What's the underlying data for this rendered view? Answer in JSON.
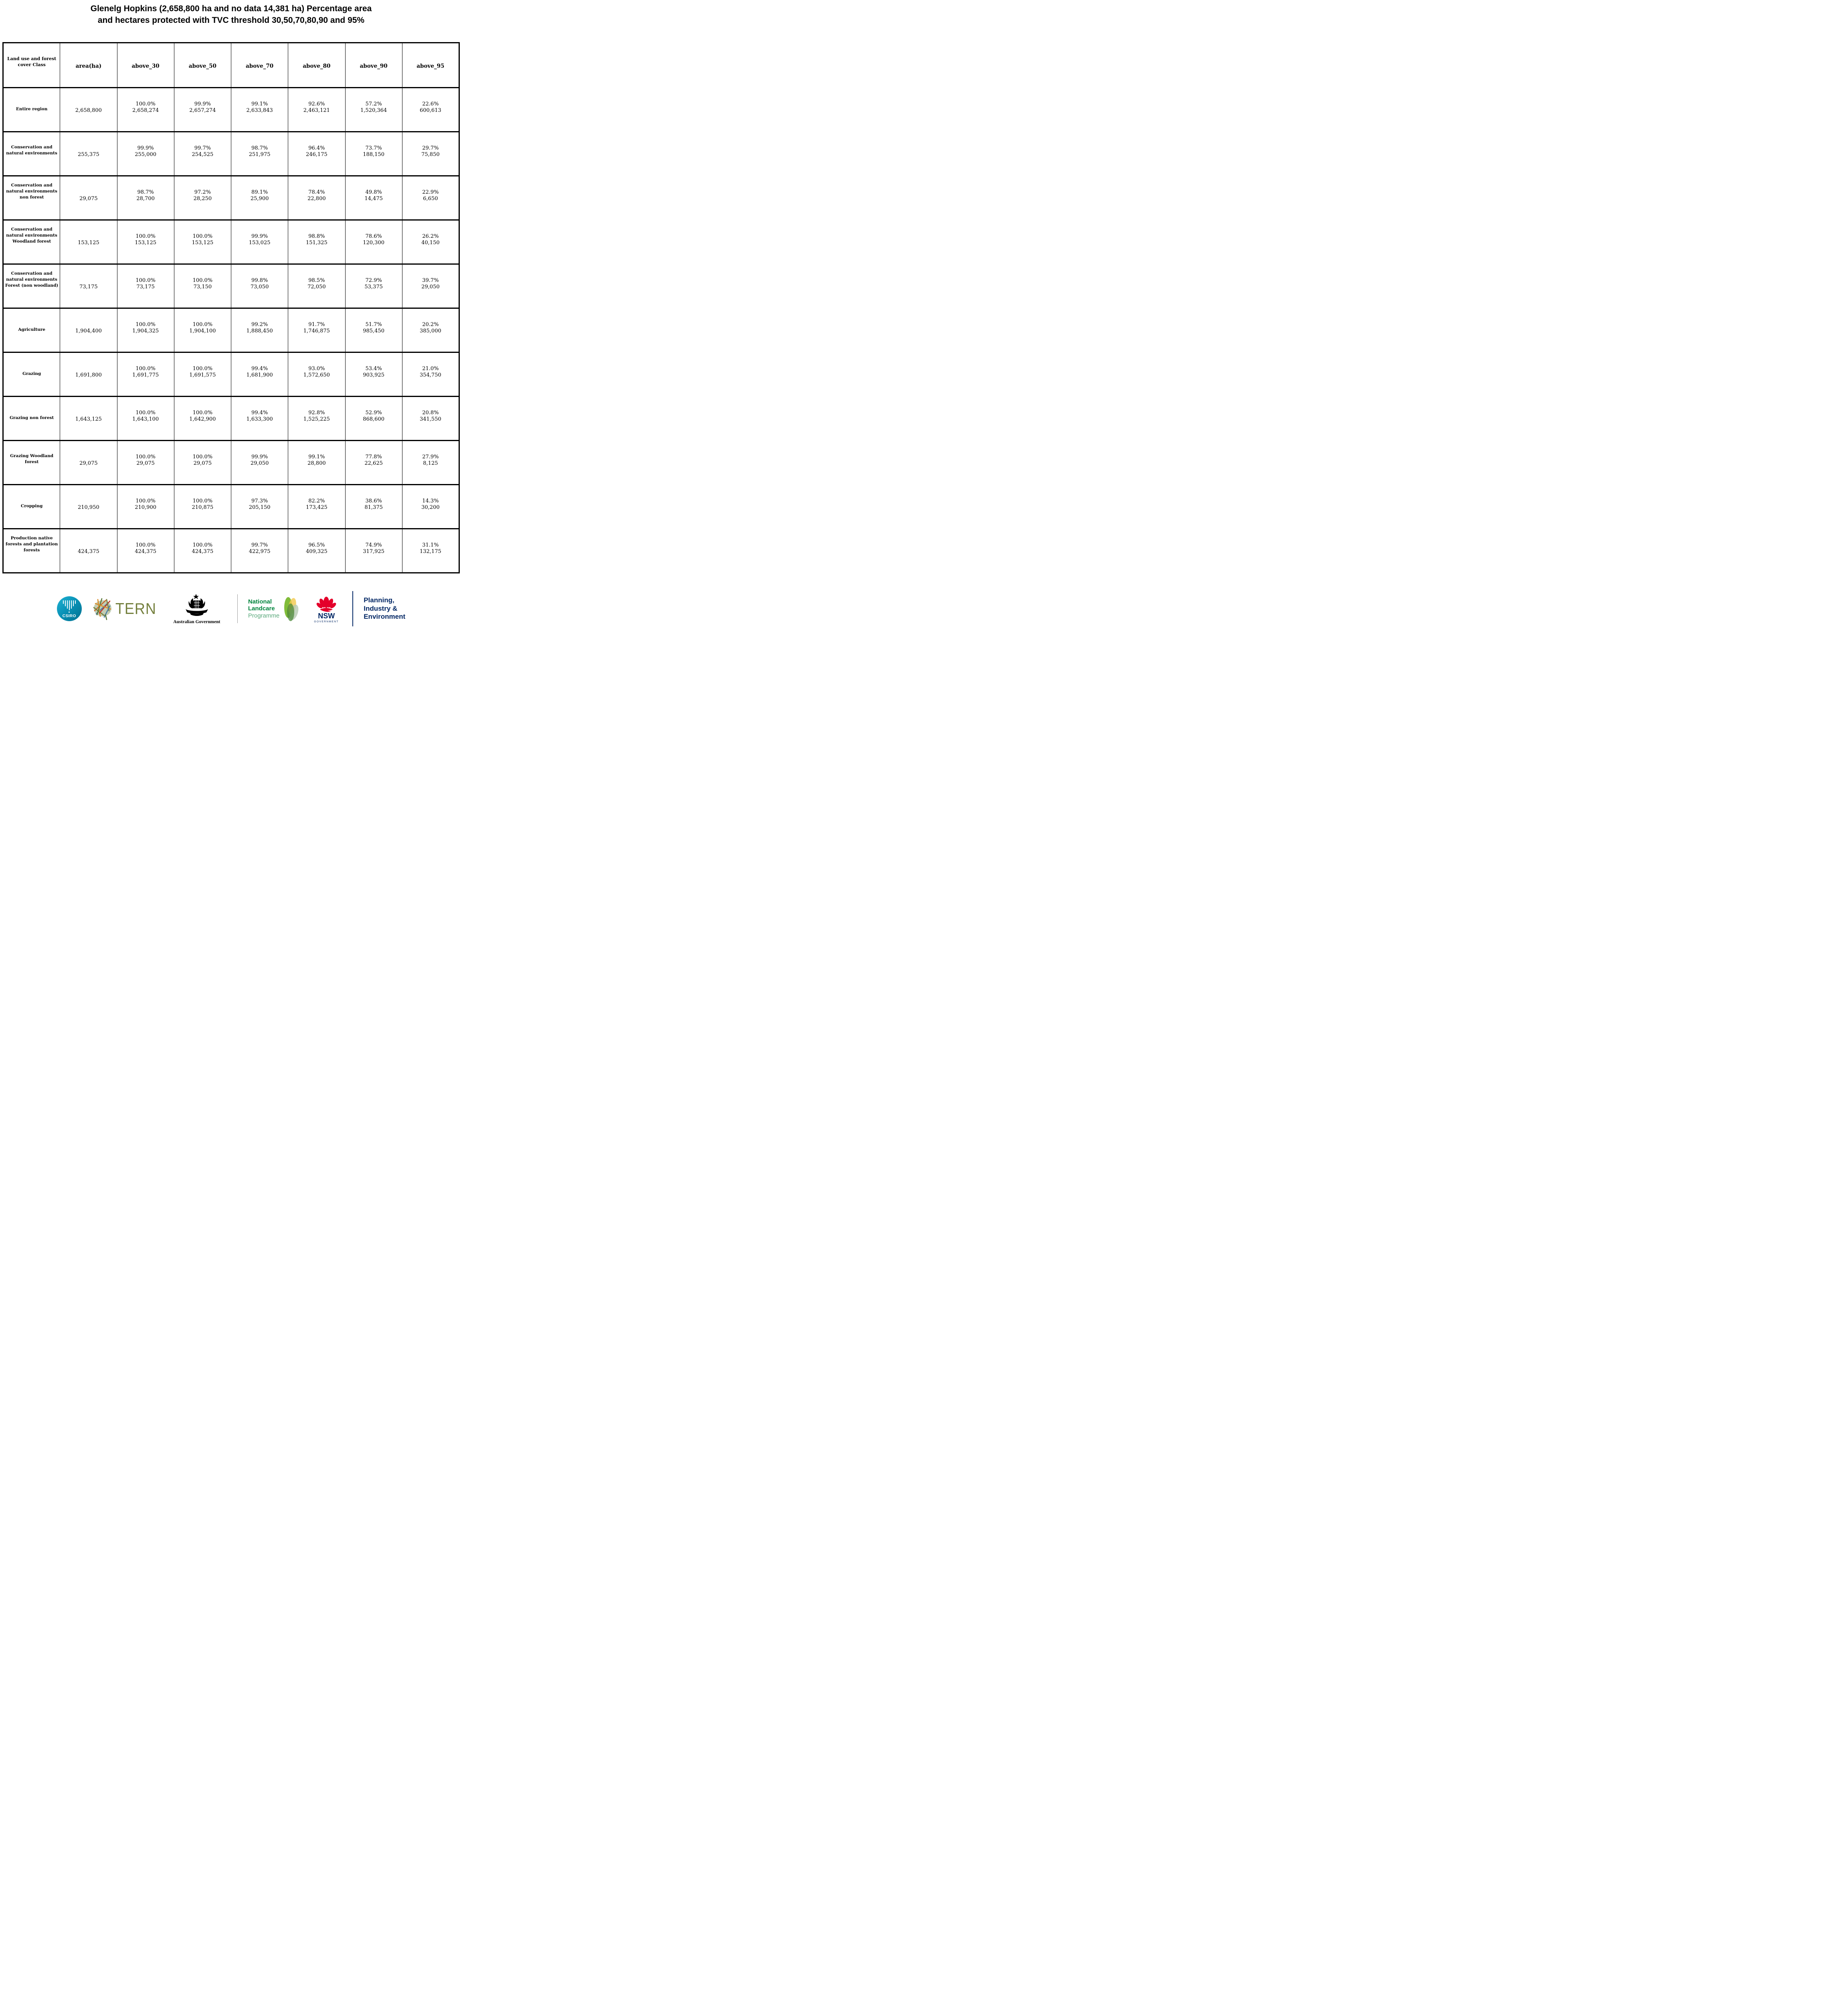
{
  "title_lines": [
    "Glenelg Hopkins (2,658,800 ha and no data 14,381 ha) Percentage area",
    "and hectares protected with TVC threshold 30,50,70,80,90 and 95%"
  ],
  "chart_data": {
    "type": "table",
    "title": "Glenelg Hopkins (2,658,800 ha and no data 14,381 ha) Percentage area and hectares protected with TVC threshold 30,50,70,80,90 and 95%",
    "region_area_ha": "2,658,800",
    "no_data_ha": "14,381",
    "tvc_thresholds": [
      30,
      50,
      70,
      80,
      90,
      95
    ],
    "columns": [
      "Land use and forest cover Class",
      "area(ha)",
      "above_30",
      "above_50",
      "above_70",
      "above_80",
      "above_90",
      "above_95"
    ],
    "rows": [
      {
        "label": "Entire region",
        "area": "2,658,800",
        "values": [
          {
            "pct": "100.0%",
            "ha": "2,658,274"
          },
          {
            "pct": "99.9%",
            "ha": "2,657,274"
          },
          {
            "pct": "99.1%",
            "ha": "2,633,843"
          },
          {
            "pct": "92.6%",
            "ha": "2,463,121"
          },
          {
            "pct": "57.2%",
            "ha": "1,520,364"
          },
          {
            "pct": "22.6%",
            "ha": "600,613"
          }
        ]
      },
      {
        "label": "Conservation and natural environments",
        "area": "255,375",
        "values": [
          {
            "pct": "99.9%",
            "ha": "255,000"
          },
          {
            "pct": "99.7%",
            "ha": "254,525"
          },
          {
            "pct": "98.7%",
            "ha": "251,975"
          },
          {
            "pct": "96.4%",
            "ha": "246,175"
          },
          {
            "pct": "73.7%",
            "ha": "188,150"
          },
          {
            "pct": "29.7%",
            "ha": "75,850"
          }
        ]
      },
      {
        "label": "Conservation and natural environments non forest",
        "area": "29,075",
        "values": [
          {
            "pct": "98.7%",
            "ha": "28,700"
          },
          {
            "pct": "97.2%",
            "ha": "28,250"
          },
          {
            "pct": "89.1%",
            "ha": "25,900"
          },
          {
            "pct": "78.4%",
            "ha": "22,800"
          },
          {
            "pct": "49.8%",
            "ha": "14,475"
          },
          {
            "pct": "22.9%",
            "ha": "6,650"
          }
        ]
      },
      {
        "label": "Conservation and natural environments Woodland forest",
        "area": "153,125",
        "values": [
          {
            "pct": "100.0%",
            "ha": "153,125"
          },
          {
            "pct": "100.0%",
            "ha": "153,125"
          },
          {
            "pct": "99.9%",
            "ha": "153,025"
          },
          {
            "pct": "98.8%",
            "ha": "151,325"
          },
          {
            "pct": "78.6%",
            "ha": "120,300"
          },
          {
            "pct": "26.2%",
            "ha": "40,150"
          }
        ]
      },
      {
        "label": "Conservation and natural environments Forest (non woodland)",
        "area": "73,175",
        "values": [
          {
            "pct": "100.0%",
            "ha": "73,175"
          },
          {
            "pct": "100.0%",
            "ha": "73,150"
          },
          {
            "pct": "99.8%",
            "ha": "73,050"
          },
          {
            "pct": "98.5%",
            "ha": "72,050"
          },
          {
            "pct": "72.9%",
            "ha": "53,375"
          },
          {
            "pct": "39.7%",
            "ha": "29,050"
          }
        ]
      },
      {
        "label": "Agriculture",
        "area": "1,904,400",
        "values": [
          {
            "pct": "100.0%",
            "ha": "1,904,325"
          },
          {
            "pct": "100.0%",
            "ha": "1,904,100"
          },
          {
            "pct": "99.2%",
            "ha": "1,888,450"
          },
          {
            "pct": "91.7%",
            "ha": "1,746,875"
          },
          {
            "pct": "51.7%",
            "ha": "985,450"
          },
          {
            "pct": "20.2%",
            "ha": "385,000"
          }
        ]
      },
      {
        "label": "Grazing",
        "area": "1,691,800",
        "values": [
          {
            "pct": "100.0%",
            "ha": "1,691,775"
          },
          {
            "pct": "100.0%",
            "ha": "1,691,575"
          },
          {
            "pct": "99.4%",
            "ha": "1,681,900"
          },
          {
            "pct": "93.0%",
            "ha": "1,572,650"
          },
          {
            "pct": "53.4%",
            "ha": "903,925"
          },
          {
            "pct": "21.0%",
            "ha": "354,750"
          }
        ]
      },
      {
        "label": "Grazing non forest",
        "area": "1,643,125",
        "values": [
          {
            "pct": "100.0%",
            "ha": "1,643,100"
          },
          {
            "pct": "100.0%",
            "ha": "1,642,900"
          },
          {
            "pct": "99.4%",
            "ha": "1,633,300"
          },
          {
            "pct": "92.8%",
            "ha": "1,525,225"
          },
          {
            "pct": "52.9%",
            "ha": "868,600"
          },
          {
            "pct": "20.8%",
            "ha": "341,550"
          }
        ]
      },
      {
        "label": "Grazing Woodland forest",
        "area": "29,075",
        "values": [
          {
            "pct": "100.0%",
            "ha": "29,075"
          },
          {
            "pct": "100.0%",
            "ha": "29,075"
          },
          {
            "pct": "99.9%",
            "ha": "29,050"
          },
          {
            "pct": "99.1%",
            "ha": "28,800"
          },
          {
            "pct": "77.8%",
            "ha": "22,625"
          },
          {
            "pct": "27.9%",
            "ha": "8,125"
          }
        ]
      },
      {
        "label": "Cropping",
        "area": "210,950",
        "values": [
          {
            "pct": "100.0%",
            "ha": "210,900"
          },
          {
            "pct": "100.0%",
            "ha": "210,875"
          },
          {
            "pct": "97.3%",
            "ha": "205,150"
          },
          {
            "pct": "82.2%",
            "ha": "173,425"
          },
          {
            "pct": "38.6%",
            "ha": "81,375"
          },
          {
            "pct": "14.3%",
            "ha": "30,200"
          }
        ]
      },
      {
        "label": "Production native forests and plantation forests",
        "area": "424,375",
        "values": [
          {
            "pct": "100.0%",
            "ha": "424,375"
          },
          {
            "pct": "100.0%",
            "ha": "424,375"
          },
          {
            "pct": "99.7%",
            "ha": "422,975"
          },
          {
            "pct": "96.5%",
            "ha": "409,325"
          },
          {
            "pct": "74.9%",
            "ha": "317,925"
          },
          {
            "pct": "31.1%",
            "ha": "132,175"
          }
        ]
      }
    ]
  },
  "footer": {
    "csiro_label": "CSIRO",
    "tern_label": "TERN",
    "ausgov_label": "Australian Government",
    "landcare_line1": "National",
    "landcare_line2": "Landcare",
    "landcare_line3": "Programme",
    "nsw_label": "NSW",
    "nsw_sub": "GOVERNMENT",
    "planning_line1": "Planning,",
    "planning_line2": "Industry &",
    "planning_line3": "Environment"
  },
  "colors": {
    "csiro_teal": "#0A93B8",
    "tern_olive": "#75803E",
    "landcare_green": "#00843D",
    "landcare_light_green": "#5BA97C",
    "nsw_red": "#E4002B",
    "navy": "#002664",
    "border_black": "#000000"
  }
}
